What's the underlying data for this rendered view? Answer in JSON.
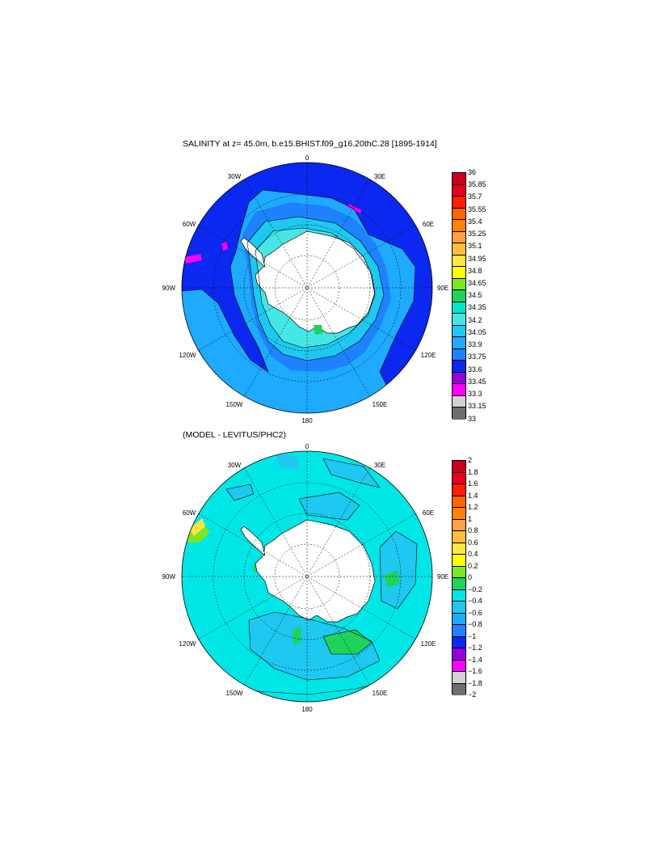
{
  "top_panel": {
    "title": "SALINITY at z=  45.0m, b.e15.BHIST.f09_g16.20thC.28 [1895-1914]",
    "colorbar": {
      "labels": [
        "36",
        "35.85",
        "35.7",
        "35.55",
        "35.4",
        "35.25",
        "35.1",
        "34.95",
        "34.8",
        "34.65",
        "34.5",
        "34.35",
        "34.2",
        "34.05",
        "33.9",
        "33.75",
        "33.6",
        "33.45",
        "33.3",
        "33.15",
        "33"
      ],
      "colors": [
        "#c8001e",
        "#e6001e",
        "#ff1e00",
        "#ff6400",
        "#ff8200",
        "#ffa046",
        "#ffbe3c",
        "#ffe646",
        "#ffff00",
        "#7de61e",
        "#1ed25a",
        "#00e6c8",
        "#46e6e6",
        "#1ec8f0",
        "#1eaaff",
        "#1e82ff",
        "#0a28f0",
        "#9600dc",
        "#ff00ff",
        "#d2d2d2",
        "#6e6e6e"
      ]
    },
    "longitude_labels": {
      "top": "0",
      "bottom": "180",
      "left": "90W",
      "right": "90E",
      "nw30": "30W",
      "ne30": "30E",
      "w60": "60W",
      "e60": "60E",
      "w120": "120W",
      "e120": "120E",
      "w150": "150W",
      "e150": "150E"
    }
  },
  "bottom_panel": {
    "title": "(MODEL - LEVITUS/PHC2)",
    "colorbar": {
      "labels": [
        "2",
        "1.8",
        "1.6",
        "1.4",
        "1.2",
        "1",
        "0.8",
        "0.6",
        "0.4",
        "0.2",
        "0",
        "−0.2",
        "−0.4",
        "−0.6",
        "−0.8",
        "−1",
        "−1.2",
        "−1.4",
        "−1.6",
        "−1.8",
        "−2"
      ],
      "colors": [
        "#c8001e",
        "#e6001e",
        "#ff1e00",
        "#ff6400",
        "#ff8200",
        "#ffa046",
        "#ffbe3c",
        "#ffe646",
        "#ffff00",
        "#7de61e",
        "#1ed25a",
        "#00e6e6",
        "#1ec8f0",
        "#1eaaff",
        "#1e82ff",
        "#0a28f0",
        "#9600dc",
        "#ff00ff",
        "#d2d2d2",
        "#6e6e6e"
      ]
    },
    "longitude_labels": {
      "top": "0",
      "bottom": "180",
      "left": "90W",
      "right": "90E",
      "nw30": "30W",
      "ne30": "30E",
      "w60": "60W",
      "e60": "60E",
      "w120": "120W",
      "e120": "120E",
      "w150": "150W",
      "e150": "150E"
    }
  }
}
